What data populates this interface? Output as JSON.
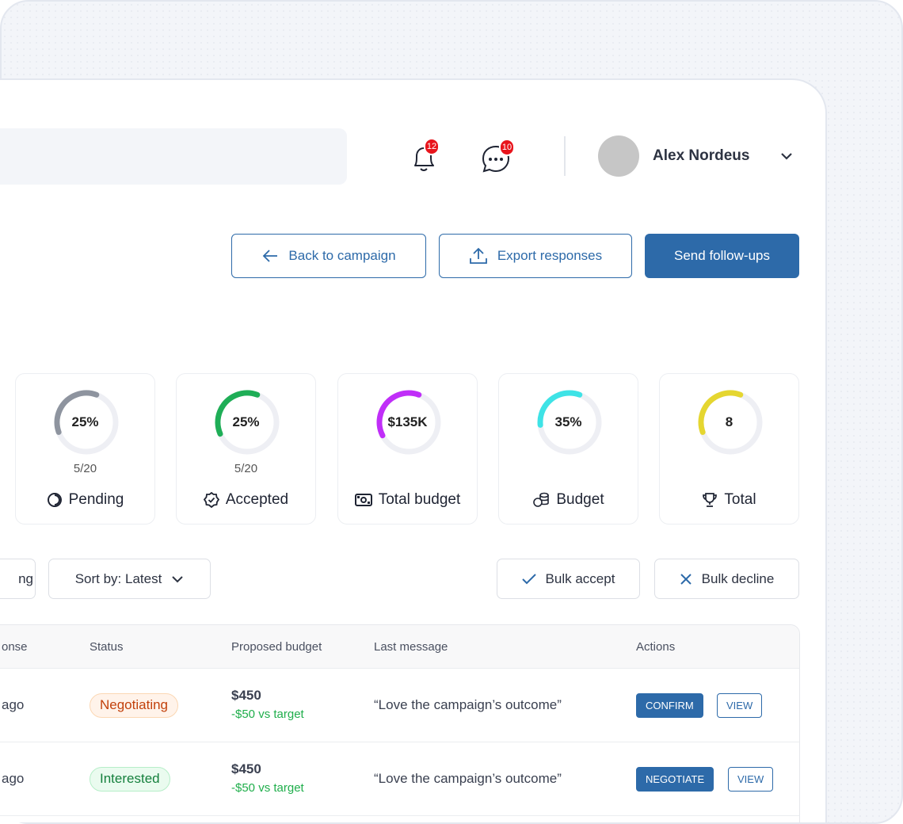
{
  "header": {
    "notifications_count": "12",
    "messages_count": "10",
    "user_name": "Alex Nordeus"
  },
  "actions": {
    "back": "Back to campaign",
    "export": "Export responses",
    "send": "Send follow-ups"
  },
  "stats": [
    {
      "value": "25%",
      "sub": "5/20",
      "label": "Pending",
      "icon": "spinner-icon",
      "color": "#8e949f",
      "fill": 0.36
    },
    {
      "value": "25%",
      "sub": "5/20",
      "label": "Accepted",
      "icon": "badge-check-icon",
      "color": "#1fae57",
      "fill": 0.37
    },
    {
      "value": "$135K",
      "sub": "",
      "label": "Total budget",
      "icon": "money-icon",
      "color": "#c02ef8",
      "fill": 0.38
    },
    {
      "value": "35%",
      "sub": "",
      "label": "Budget",
      "icon": "coins-icon",
      "color": "#3ee3e6",
      "fill": 0.32
    },
    {
      "value": "8",
      "sub": "",
      "label": "Total",
      "icon": "trophy-icon",
      "color": "#e5d630",
      "fill": 0.36
    }
  ],
  "filters": {
    "partial": "ng",
    "sort": "Sort by: Latest",
    "bulk_accept": "Bulk accept",
    "bulk_decline": "Bulk decline"
  },
  "table": {
    "headers": [
      "onse",
      "Status",
      "Proposed budget",
      "Last message",
      "Actions"
    ],
    "rows": [
      {
        "time": "ago",
        "status": "Negotiating",
        "amount": "$450",
        "diff": "-$50 vs target",
        "message": "“Love the campaign’s outcome”",
        "primary": "CONFIRM",
        "secondary": "VIEW"
      },
      {
        "time": "ago",
        "status": "Interested",
        "amount": "$450",
        "diff": "-$50 vs target",
        "message": "“Love the campaign’s outcome”",
        "primary": "NEGOTIATE",
        "secondary": "VIEW"
      }
    ]
  }
}
